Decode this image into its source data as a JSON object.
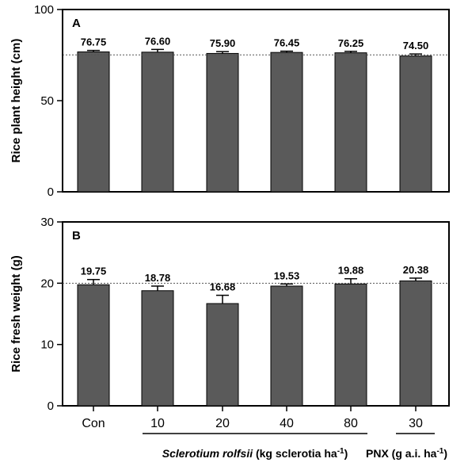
{
  "chart_data": [
    {
      "type": "bar",
      "panel": "A",
      "ylabel": "Rice plant height (cm)",
      "ylim": [
        0,
        100
      ],
      "yticks": [
        0,
        50,
        100
      ],
      "categories": [
        "Con",
        "10",
        "20",
        "40",
        "80",
        "30"
      ],
      "values": [
        76.75,
        76.6,
        75.9,
        76.45,
        76.25,
        74.5
      ],
      "value_labels": [
        "76.75",
        "76.60",
        "75.90",
        "76.45",
        "76.25",
        "74.50"
      ],
      "errors": [
        0.8,
        1.5,
        1.0,
        0.7,
        0.8,
        1.1
      ],
      "reference_line": 75.1,
      "bar_color": "#5a5a5a"
    },
    {
      "type": "bar",
      "panel": "B",
      "ylabel": "Rice fresh weight (g)",
      "ylim": [
        0,
        30
      ],
      "yticks": [
        0,
        10,
        20,
        30
      ],
      "categories": [
        "Con",
        "10",
        "20",
        "40",
        "80",
        "30"
      ],
      "values": [
        19.75,
        18.78,
        16.68,
        19.53,
        19.88,
        20.38
      ],
      "value_labels": [
        "19.75",
        "18.78",
        "16.68",
        "19.53",
        "19.88",
        "20.38"
      ],
      "errors": [
        0.85,
        0.75,
        1.35,
        0.35,
        0.85,
        0.45
      ],
      "reference_line": 20.0,
      "bar_color": "#5a5a5a"
    }
  ],
  "x_axis": {
    "categories": [
      "Con",
      "10",
      "20",
      "40",
      "80",
      "30"
    ],
    "group_labels": {
      "sclerotium_italic": "Sclerotium rolfsii",
      "sclerotium_rest": " (kg sclerotia ha",
      "sclerotium_sup": "-1",
      "sclerotium_close": ")",
      "pnx": "PNX (g a.i. ha",
      "pnx_sup": "-1",
      "pnx_close": ")"
    }
  }
}
